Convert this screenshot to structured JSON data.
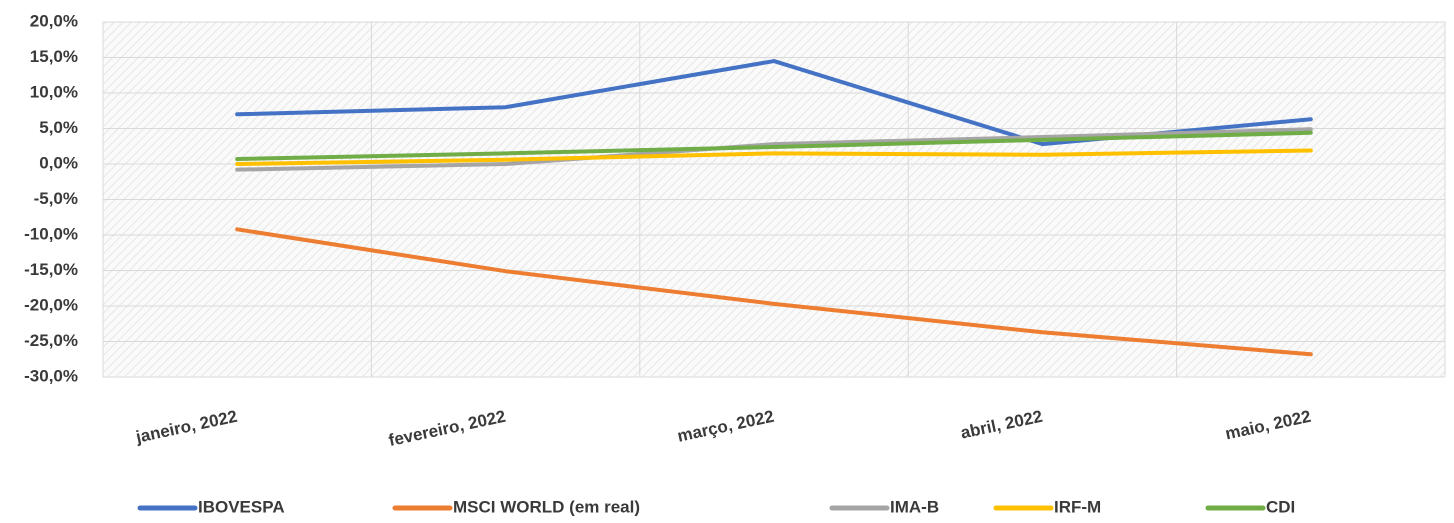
{
  "chart_data": {
    "type": "line",
    "categories": [
      "janeiro, 2022",
      "fevereiro, 2022",
      "março, 2022",
      "abril, 2022",
      "maio, 2022"
    ],
    "series": [
      {
        "name": "IBOVESPA",
        "color": "#4472c4",
        "values": [
          7.0,
          8.0,
          14.5,
          2.8,
          6.3
        ]
      },
      {
        "name": "MSCI WORLD (em real)",
        "color": "#ed7d31",
        "values": [
          -9.2,
          -15.1,
          -19.7,
          -23.7,
          -26.8
        ]
      },
      {
        "name": "IMA-B",
        "color": "#a5a5a5",
        "values": [
          -0.8,
          0.0,
          2.8,
          3.8,
          4.9
        ]
      },
      {
        "name": "IRF-M",
        "color": "#ffc000",
        "values": [
          0.0,
          0.6,
          1.5,
          1.3,
          1.9
        ]
      },
      {
        "name": "CDI",
        "color": "#70ad47",
        "values": [
          0.7,
          1.5,
          2.4,
          3.4,
          4.4
        ]
      }
    ],
    "ylim": [
      -30,
      20
    ],
    "yticks": [
      {
        "value": -30,
        "label": "-30,0%"
      },
      {
        "value": -25,
        "label": "-25,0%"
      },
      {
        "value": -20,
        "label": "-20,0%"
      },
      {
        "value": -15,
        "label": "-15,0%"
      },
      {
        "value": -10,
        "label": "-10,0%"
      },
      {
        "value": -5,
        "label": "-5,0%"
      },
      {
        "value": 0,
        "label": "0,0%"
      },
      {
        "value": 5,
        "label": "5,0%"
      },
      {
        "value": 10,
        "label": "10,0%"
      },
      {
        "value": 15,
        "label": "15,0%"
      },
      {
        "value": 20,
        "label": "20,0%"
      }
    ],
    "grid": true,
    "legend": "bottom"
  }
}
